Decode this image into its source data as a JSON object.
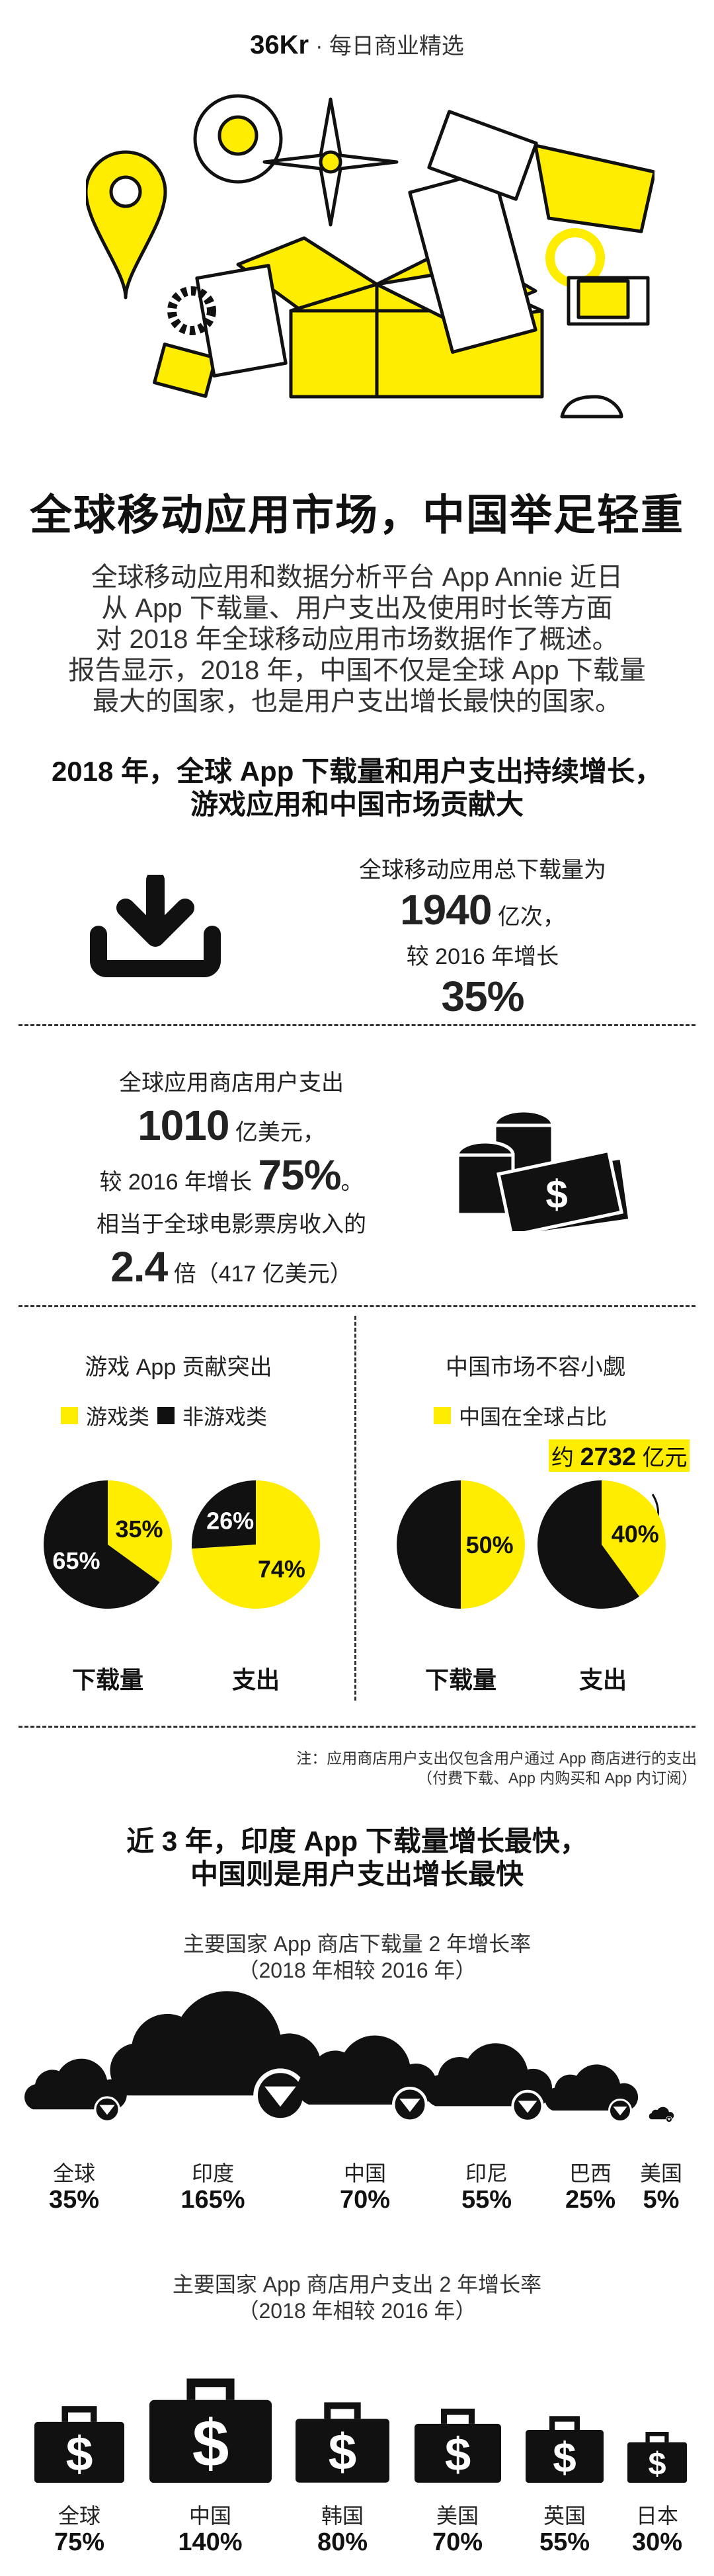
{
  "header": {
    "logo": "36Kr",
    "tagline": "· 每日商业精选"
  },
  "colors": {
    "accent": "#FFED00",
    "dark": "#111111"
  },
  "title": "全球移动应用市场，中国举足轻重",
  "intro": [
    "全球移动应用和数据分析平台 App Annie 近日",
    "从 App 下载量、用户支出及使用时长等方面",
    "对 2018 年全球移动应用市场数据作了概述。",
    "报告显示，2018 年，中国不仅是全球 App 下载量",
    "最大的国家，也是用户支出增长最快的国家。"
  ],
  "section1": {
    "heading": [
      "2018 年，全球 App 下载量和用户支出持续增长，",
      "游戏应用和中国市场贡献大"
    ],
    "downloads": {
      "icon": "download-icon",
      "line1": "全球移动应用总下载量为",
      "value": "1940",
      "unit": "亿次，",
      "line3": "较 2016 年增长",
      "growth": "35%"
    },
    "spending": {
      "icon": "money-icon",
      "line1": "全球应用商店用户支出",
      "value": "1010",
      "unit": "亿美元，",
      "line3": "较 2016 年增长",
      "growth": "75%",
      "growth_suffix": "。",
      "line4": "相当于全球电影票房收入的",
      "multiple": "2.4",
      "multiple_suffix": "倍（417 亿美元）"
    }
  },
  "games": {
    "title": "游戏 App 贡献突出",
    "legend": [
      "游戏类",
      "非游戏类"
    ],
    "labels": [
      "下载量",
      "支出"
    ]
  },
  "china": {
    "title": "中国市场不容小觑",
    "legend": [
      "中国在全球占比"
    ],
    "labels": [
      "下载量",
      "支出"
    ],
    "callout_prefix": "约",
    "callout_value": "2732",
    "callout_unit": "亿元"
  },
  "chart_data": [
    {
      "type": "pie",
      "label": "下载量",
      "slices": [
        {
          "name": "游戏类",
          "value": 35,
          "color": "#FFED00"
        },
        {
          "name": "非游戏类",
          "value": 65,
          "color": "#111111"
        }
      ]
    },
    {
      "type": "pie",
      "label": "支出",
      "slices": [
        {
          "name": "游戏类",
          "value": 74,
          "color": "#FFED00"
        },
        {
          "name": "非游戏类",
          "value": 26,
          "color": "#111111"
        }
      ]
    },
    {
      "type": "pie",
      "label": "下载量",
      "slices": [
        {
          "name": "中国在全球占比",
          "value": 50,
          "color": "#FFED00"
        },
        {
          "name": "",
          "value": 50,
          "color": "#111111"
        }
      ]
    },
    {
      "type": "pie",
      "label": "支出",
      "slices": [
        {
          "name": "中国在全球占比",
          "value": 40,
          "color": "#FFED00"
        },
        {
          "name": "",
          "value": 60,
          "color": "#111111"
        }
      ]
    }
  ],
  "note": [
    "注：应用商店用户支出仅包含用户通过 App 商店进行的支出",
    "（付费下载、App 内购买和 App 内订阅）"
  ],
  "section2": {
    "heading": [
      "近 3 年，印度 App 下载量增长最快，",
      "中国则是用户支出增长最快"
    ],
    "downloads_title": "主要国家 App 商店下载量 2 年增长率",
    "downloads_sub": "（2018 年相较 2016 年）",
    "downloads": [
      {
        "country": "全球",
        "value": "35%"
      },
      {
        "country": "印度",
        "value": "165%"
      },
      {
        "country": "中国",
        "value": "70%"
      },
      {
        "country": "印尼",
        "value": "55%"
      },
      {
        "country": "巴西",
        "value": "25%"
      },
      {
        "country": "美国",
        "value": "5%"
      }
    ],
    "spending_title": "主要国家 App 商店用户支出 2 年增长率",
    "spending_sub": "（2018 年相较 2016 年）",
    "spending": [
      {
        "country": "全球",
        "value": "75%"
      },
      {
        "country": "中国",
        "value": "140%"
      },
      {
        "country": "韩国",
        "value": "80%"
      },
      {
        "country": "美国",
        "value": "70%"
      },
      {
        "country": "英国",
        "value": "55%"
      },
      {
        "country": "日本",
        "value": "30%"
      }
    ]
  }
}
